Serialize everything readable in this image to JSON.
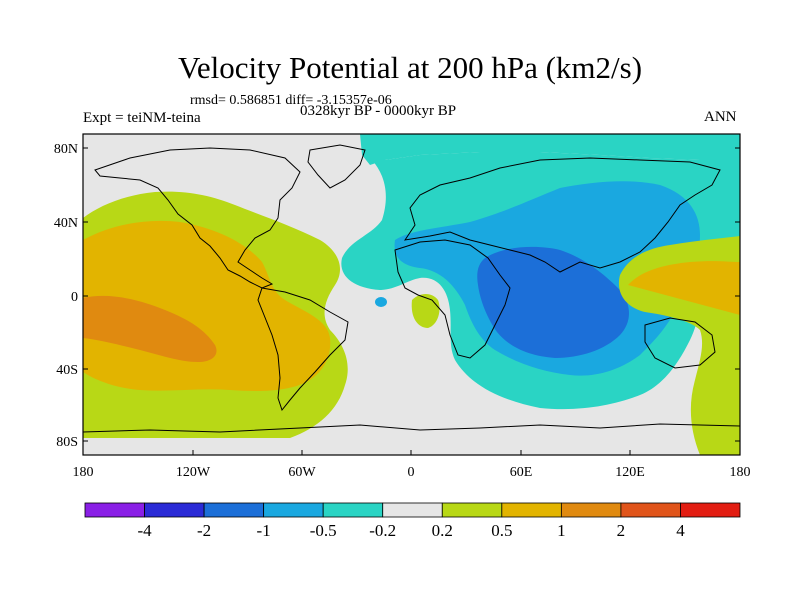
{
  "title": "Velocity Potential at 200 hPa (km2/s)",
  "stats": "rmsd= 0.586851 diff= -3.15357e-06",
  "left_label": "Expt = teiNM-teina",
  "center_label": "0328kyr BP - 0000kyr BP",
  "right_label": "ANN",
  "lat_ticks": [
    "80N",
    "40N",
    "0",
    "40S",
    "80S"
  ],
  "lon_ticks": [
    "180",
    "120W",
    "60W",
    "0",
    "60E",
    "120E",
    "180"
  ],
  "colorbar": {
    "labels": [
      "-4",
      "-2",
      "-1",
      "-0.5",
      "-0.2",
      "0.2",
      "0.5",
      "1",
      "2",
      "4"
    ],
    "colors": [
      "#8a1fe6",
      "#2b2bd6",
      "#1c6fd8",
      "#1aa8e0",
      "#2ad4c4",
      "#e6e6e6",
      "#b8d816",
      "#e2b400",
      "#e08a10",
      "#e0541a",
      "#e21d12"
    ]
  },
  "palette": {
    "neutral": "#e6e6e6",
    "cyan": "#2ad4c4",
    "lightblue": "#1aa8e0",
    "blue": "#1c6fd8",
    "green": "#b8d816",
    "yellow": "#e2b400",
    "orange": "#e08a10"
  }
}
